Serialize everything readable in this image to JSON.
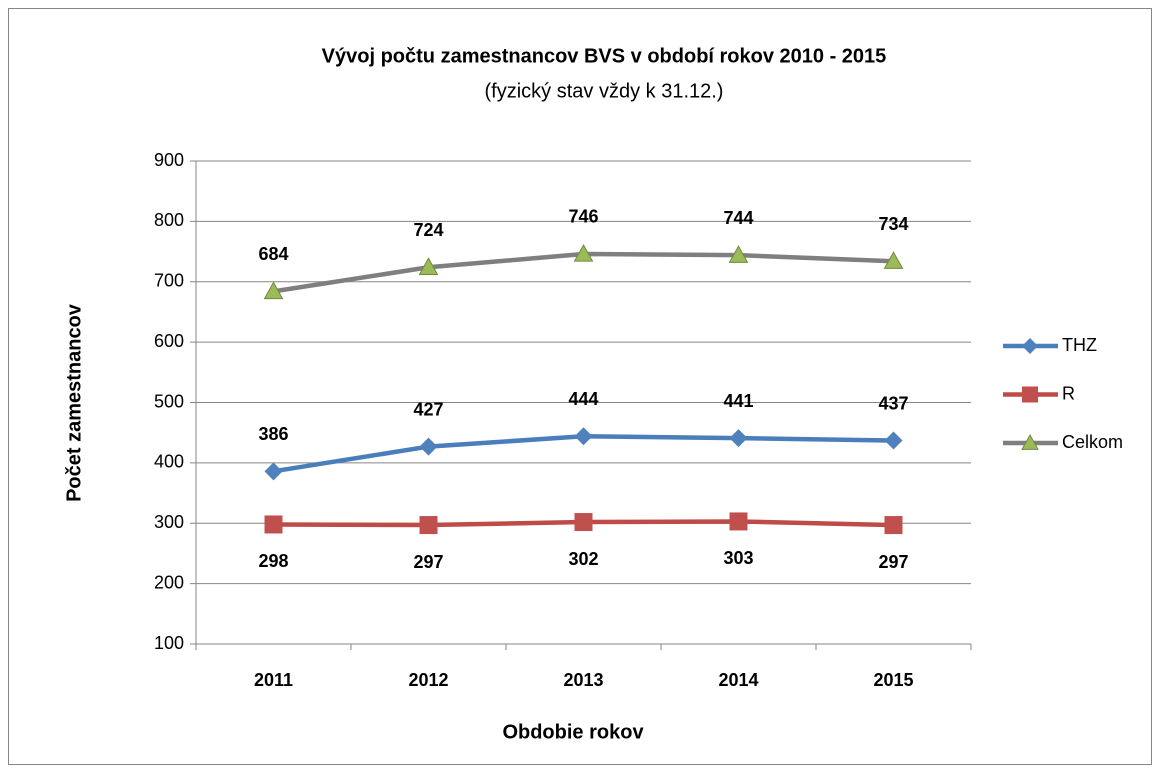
{
  "chart_data": {
    "type": "line",
    "title": "Vývoj počtu zamestnancov BVS v období rokov 2010 - 2015",
    "subtitle": "(fyzický stav vždy k 31.12.)",
    "x_label": "Obdobie rokov",
    "y_label": "Počet zamestnancov",
    "categories": [
      "2011",
      "2012",
      "2013",
      "2014",
      "2015"
    ],
    "series": [
      {
        "name": "THZ",
        "color": "#4a7ebb",
        "marker": "diamond",
        "marker_color": "#4f81bd",
        "values": [
          386,
          427,
          444,
          441,
          437
        ]
      },
      {
        "name": "R",
        "color": "#be4b48",
        "marker": "square",
        "marker_color": "#c0504d",
        "values": [
          298,
          297,
          302,
          303,
          297
        ]
      },
      {
        "name": "Celkom",
        "color": "#7f7f7f",
        "marker": "triangle",
        "marker_color": "#9bbb59",
        "values": [
          684,
          724,
          746,
          744,
          734
        ]
      }
    ],
    "ylim": [
      100,
      900
    ],
    "yticks": [
      100,
      200,
      300,
      400,
      500,
      600,
      700,
      800,
      900
    ],
    "grid": true,
    "legend": "right"
  }
}
